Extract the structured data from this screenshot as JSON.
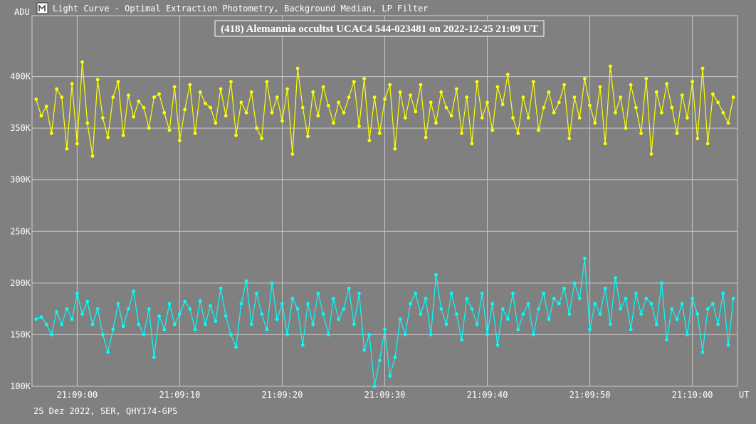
{
  "window_title": "Light Curve - Optimal Extraction Photometry, Background Median, LP Filter",
  "footer": "25 Dez 2022, SER, QHY174-GPS",
  "chart_data": {
    "type": "line",
    "title": "(418) Alemannia occultst UCAC4 544-023481 on 2022-12-25 21:09 UT",
    "y_label": "ADU",
    "x_label": "UT",
    "grid": true,
    "xlim": [
      -4.4,
      64.4
    ],
    "xticks": [
      {
        "value": 0,
        "label": "21:09:00"
      },
      {
        "value": 10,
        "label": "21:09:10"
      },
      {
        "value": 20,
        "label": "21:09:20"
      },
      {
        "value": 30,
        "label": "21:09:30"
      },
      {
        "value": 40,
        "label": "21:09:40"
      },
      {
        "value": 50,
        "label": "21:09:50"
      },
      {
        "value": 60,
        "label": "21:10:00"
      }
    ],
    "ylim": [
      100000,
      459000
    ],
    "yticks": [
      {
        "value": 100000,
        "label": "100K"
      },
      {
        "value": 150000,
        "label": "150K"
      },
      {
        "value": 200000,
        "label": "200K"
      },
      {
        "value": 250000,
        "label": "250K"
      },
      {
        "value": 300000,
        "label": "300K"
      },
      {
        "value": 350000,
        "label": "350K"
      },
      {
        "value": 400000,
        "label": "400K"
      }
    ],
    "x": [
      -4,
      -3.5,
      -3,
      -2.5,
      -2,
      -1.5,
      -1,
      -0.5,
      0,
      0.5,
      1,
      1.5,
      2,
      2.5,
      3,
      3.5,
      4,
      4.5,
      5,
      5.5,
      6,
      6.5,
      7,
      7.5,
      8,
      8.5,
      9,
      9.5,
      10,
      10.5,
      11,
      11.5,
      12,
      12.5,
      13,
      13.5,
      14,
      14.5,
      15,
      15.5,
      16,
      16.5,
      17,
      17.5,
      18,
      18.5,
      19,
      19.5,
      20,
      20.5,
      21,
      21.5,
      22,
      22.5,
      23,
      23.5,
      24,
      24.5,
      25,
      25.5,
      26,
      26.5,
      27,
      27.5,
      28,
      28.5,
      29,
      29.5,
      30,
      30.5,
      31,
      31.5,
      32,
      32.5,
      33,
      33.5,
      34,
      34.5,
      35,
      35.5,
      36,
      36.5,
      37,
      37.5,
      38,
      38.5,
      39,
      39.5,
      40,
      40.5,
      41,
      41.5,
      42,
      42.5,
      43,
      43.5,
      44,
      44.5,
      45,
      45.5,
      46,
      46.5,
      47,
      47.5,
      48,
      48.5,
      49,
      49.5,
      50,
      50.5,
      51,
      51.5,
      52,
      52.5,
      53,
      53.5,
      54,
      54.5,
      55,
      55.5,
      56,
      56.5,
      57,
      57.5,
      58,
      58.5,
      59,
      59.5,
      60,
      60.5,
      61,
      61.5,
      62,
      62.5,
      63,
      63.5,
      64
    ],
    "series": [
      {
        "color": "#ffff00",
        "values": [
          378000,
          362000,
          371000,
          345000,
          388000,
          380000,
          330000,
          393000,
          335000,
          414000,
          355000,
          323000,
          397000,
          360000,
          341000,
          380000,
          395000,
          343000,
          382000,
          361000,
          376000,
          370000,
          350000,
          380000,
          383000,
          365000,
          348000,
          390000,
          338000,
          368000,
          392000,
          345000,
          385000,
          374000,
          370000,
          355000,
          388000,
          362000,
          395000,
          343000,
          375000,
          365000,
          385000,
          350000,
          340000,
          395000,
          365000,
          380000,
          357000,
          388000,
          325000,
          408000,
          370000,
          342000,
          385000,
          362000,
          390000,
          372000,
          355000,
          375000,
          365000,
          380000,
          395000,
          352000,
          398000,
          338000,
          380000,
          345000,
          378000,
          392000,
          330000,
          385000,
          360000,
          382000,
          366000,
          392000,
          341000,
          375000,
          355000,
          385000,
          370000,
          362000,
          388000,
          345000,
          380000,
          335000,
          395000,
          360000,
          375000,
          348000,
          390000,
          373000,
          402000,
          360000,
          345000,
          380000,
          360000,
          395000,
          348000,
          370000,
          385000,
          365000,
          375000,
          392000,
          340000,
          380000,
          360000,
          398000,
          372000,
          355000,
          390000,
          335000,
          410000,
          365000,
          380000,
          350000,
          392000,
          370000,
          345000,
          398000,
          325000,
          385000,
          365000,
          393000,
          370000,
          345000,
          382000,
          360000,
          395000,
          340000,
          408000,
          335000,
          383000,
          375000,
          365000,
          355000,
          380000
        ]
      },
      {
        "color": "#00ffff",
        "values": [
          165000,
          167000,
          160000,
          150000,
          172000,
          160000,
          175000,
          165000,
          190000,
          170000,
          182000,
          160000,
          175000,
          150000,
          133000,
          155000,
          180000,
          158000,
          175000,
          192000,
          160000,
          150000,
          175000,
          128000,
          168000,
          155000,
          180000,
          160000,
          170000,
          182000,
          175000,
          155000,
          183000,
          160000,
          178000,
          163000,
          195000,
          168000,
          150000,
          138000,
          180000,
          202000,
          160000,
          190000,
          170000,
          155000,
          200000,
          165000,
          180000,
          150000,
          185000,
          175000,
          140000,
          180000,
          160000,
          190000,
          170000,
          150000,
          185000,
          165000,
          175000,
          195000,
          160000,
          190000,
          135000,
          150000,
          100000,
          125000,
          155000,
          110000,
          128000,
          165000,
          150000,
          180000,
          190000,
          170000,
          185000,
          150000,
          208000,
          175000,
          160000,
          190000,
          170000,
          145000,
          185000,
          175000,
          160000,
          190000,
          150000,
          180000,
          140000,
          175000,
          165000,
          190000,
          155000,
          170000,
          180000,
          150000,
          175000,
          190000,
          165000,
          185000,
          180000,
          195000,
          170000,
          200000,
          185000,
          224000,
          155000,
          180000,
          170000,
          195000,
          160000,
          205000,
          175000,
          185000,
          155000,
          190000,
          170000,
          185000,
          180000,
          160000,
          200000,
          145000,
          175000,
          165000,
          180000,
          150000,
          185000,
          170000,
          133000,
          175000,
          180000,
          160000,
          190000,
          140000,
          185000
        ]
      }
    ]
  }
}
